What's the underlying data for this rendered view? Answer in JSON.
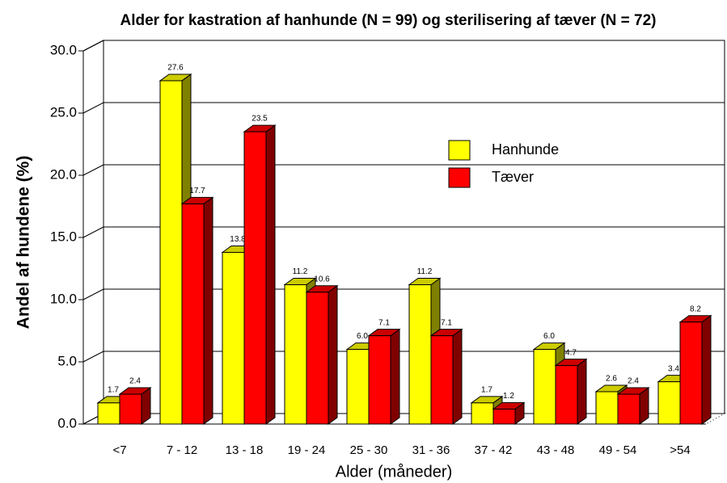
{
  "chart_data": {
    "type": "bar3d",
    "title": "Alder for kastration af hanhunde (N = 99) og sterilisering af tæver (N = 72)",
    "xlabel": "Alder (måneder)",
    "ylabel": "Andel af hundene (%)",
    "categories": [
      "<7",
      "7 - 12",
      "13 - 18",
      "19 - 24",
      "25 - 30",
      "31 - 36",
      "37 - 42",
      "43 - 48",
      "49 - 54",
      ">54"
    ],
    "series": [
      {
        "name": "Hanhunde",
        "color": "#ffff00",
        "values": [
          1.7,
          27.6,
          13.8,
          11.2,
          6.0,
          11.2,
          1.7,
          6.0,
          2.6,
          3.4
        ],
        "value_labels": [
          "1.7",
          "27.6",
          "13.8",
          "11.2",
          "6.0",
          "11.2",
          "1.7",
          "6.0",
          "2.6",
          "3.4"
        ]
      },
      {
        "name": "Tæver",
        "color": "#ff0000",
        "values": [
          2.4,
          17.7,
          23.5,
          10.6,
          7.1,
          7.1,
          1.2,
          4.7,
          2.4,
          8.2
        ],
        "value_labels": [
          "2.4",
          "17.7",
          "23.5",
          "10.6",
          "7.1",
          "7.1",
          "1.2",
          "4.7",
          "2.4",
          "8.2"
        ]
      }
    ],
    "ylim": [
      0,
      30
    ],
    "yticks": [
      {
        "value": 0,
        "label": "0.0"
      },
      {
        "value": 5,
        "label": "5.0"
      },
      {
        "value": 10,
        "label": "10.0"
      },
      {
        "value": 15,
        "label": "15.0"
      },
      {
        "value": 20,
        "label": "20.0"
      },
      {
        "value": 25,
        "label": "25.0"
      },
      {
        "value": 30,
        "label": "30.0"
      }
    ],
    "grid": true
  }
}
